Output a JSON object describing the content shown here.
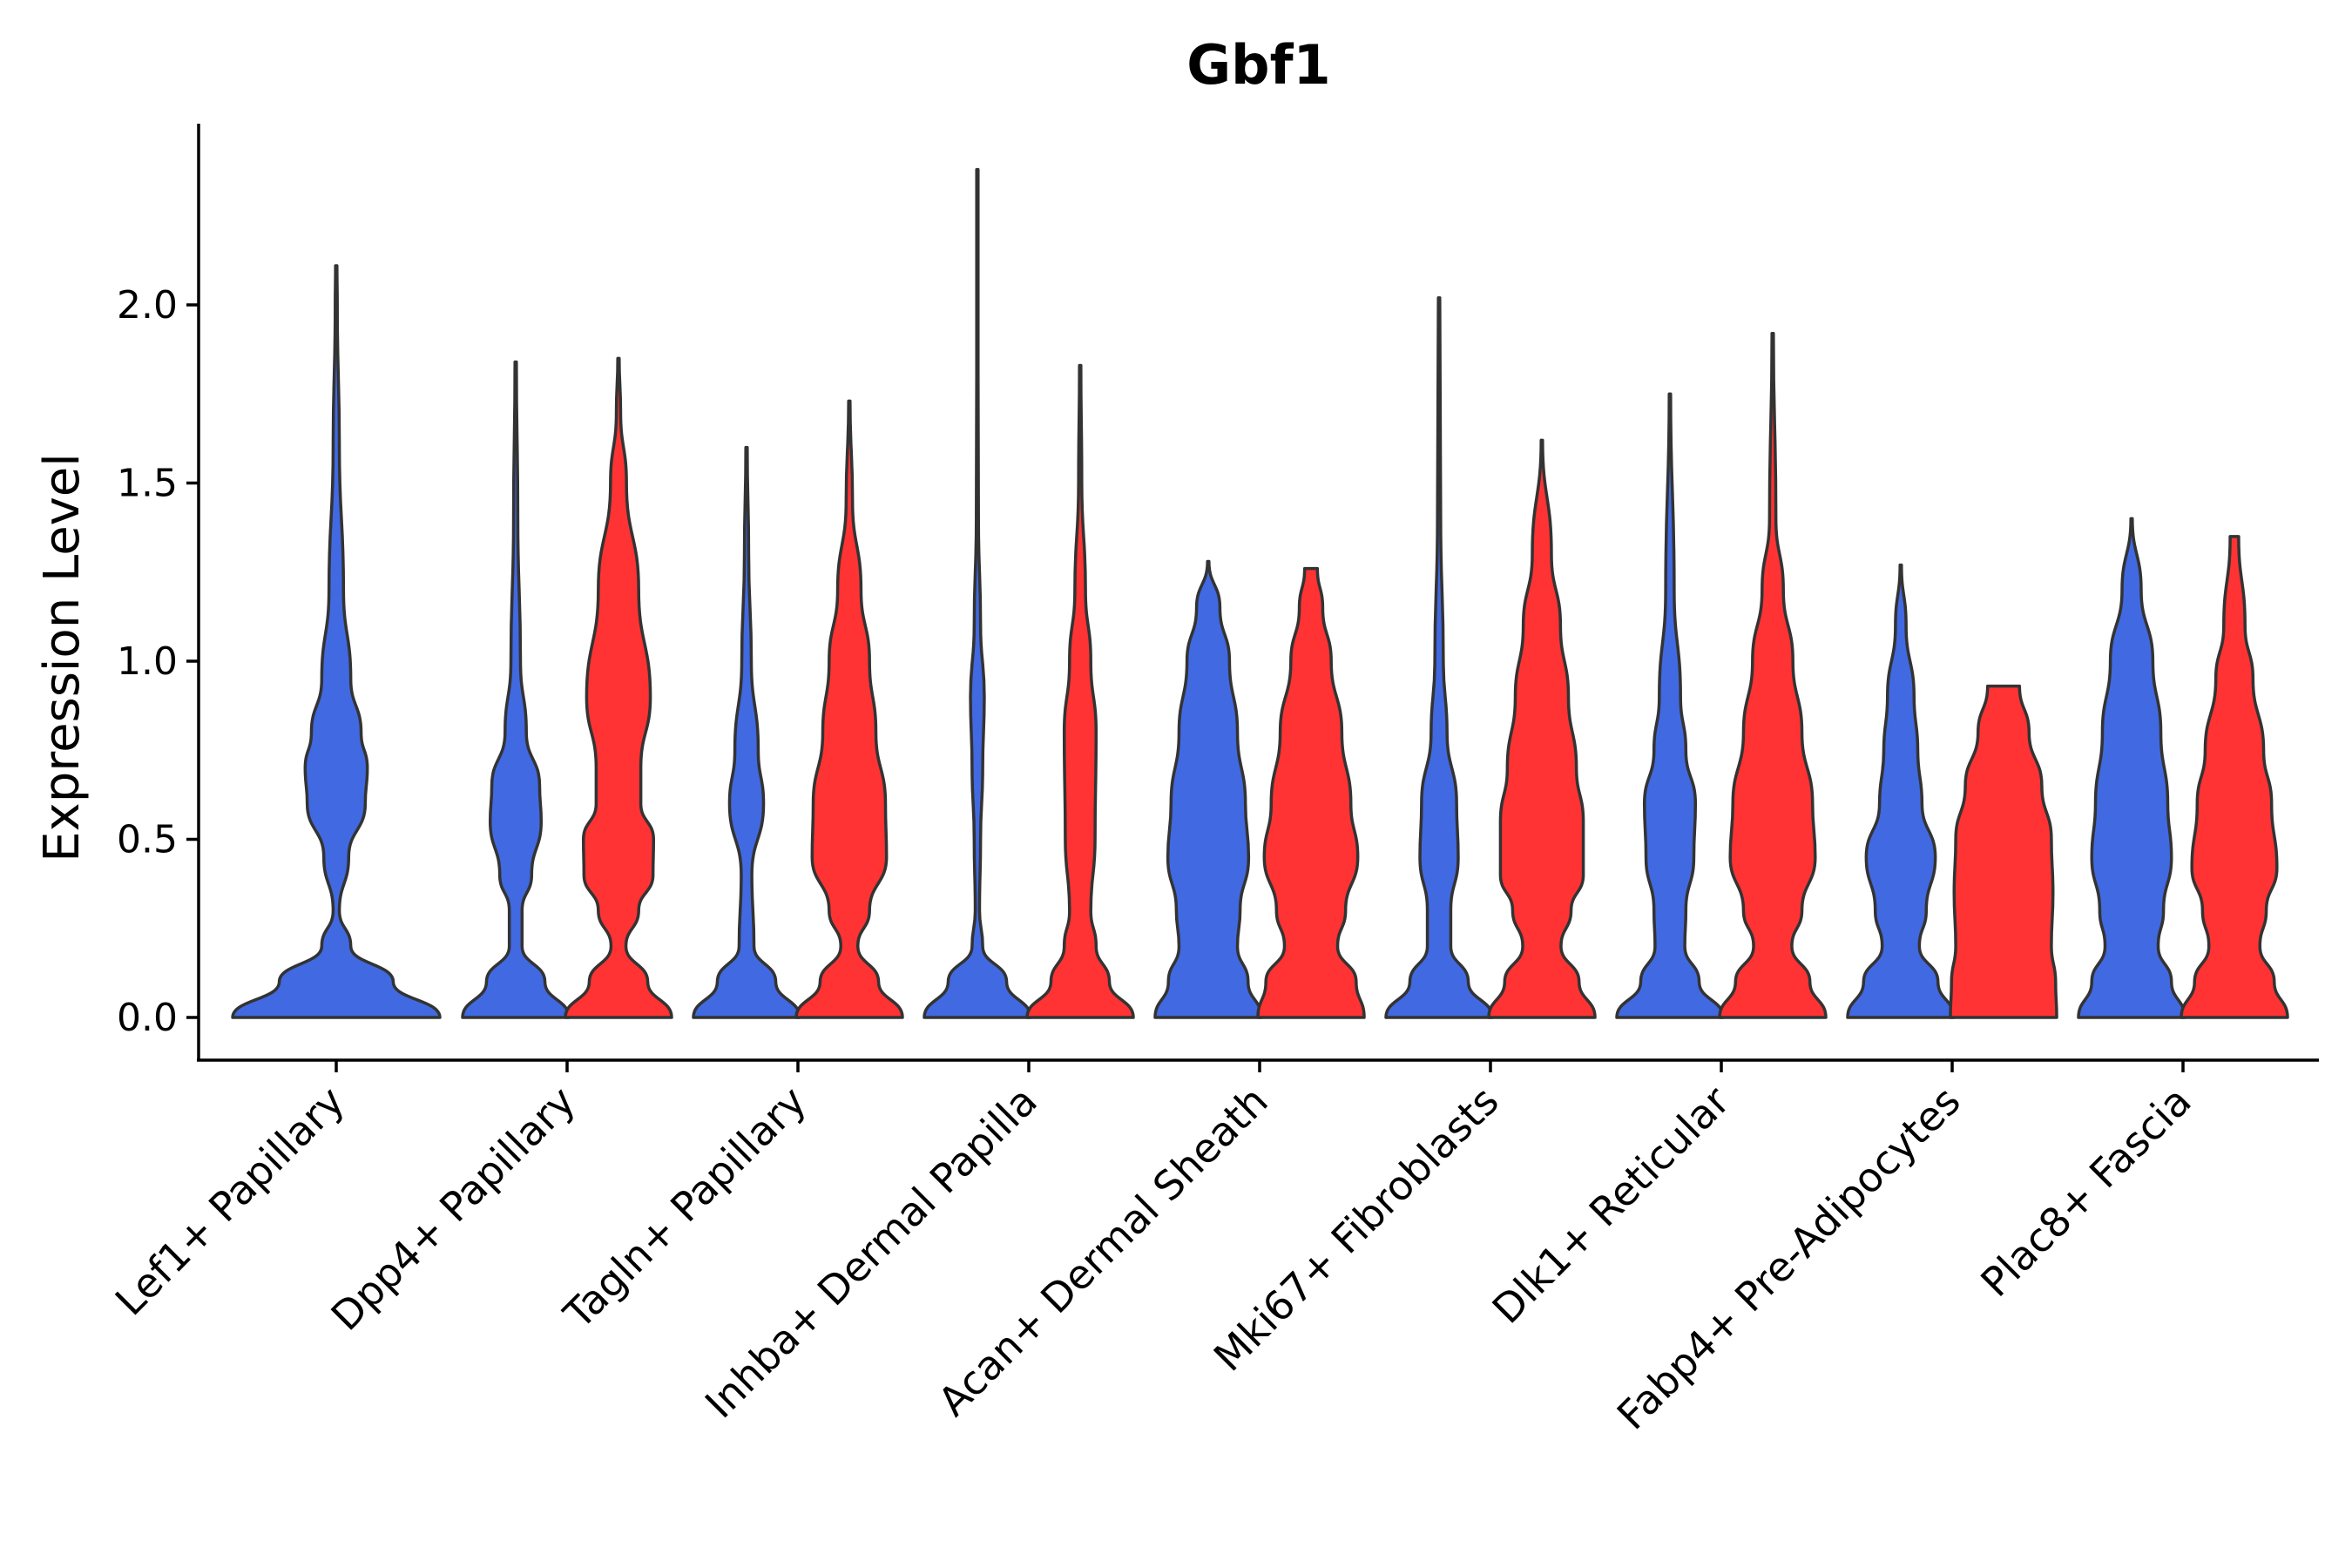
{
  "chart_data": {
    "type": "violin",
    "title": "Gbf1",
    "xlabel": "",
    "ylabel": "Expression Level",
    "ylim": [
      -0.12,
      2.5
    ],
    "yticks": [
      "0.0",
      "0.5",
      "1.0",
      "1.5",
      "2.0"
    ],
    "grid": false,
    "legend": "none",
    "series": [
      {
        "name": "group1",
        "color": "#4169E1"
      },
      {
        "name": "group2",
        "color": "#FF3333"
      }
    ],
    "categories": [
      "Lef1+ Papillary",
      "Dpp4+ Papillary",
      "Tagln+ Papillary",
      "Inhba+ Dermal Papilla",
      "Acan+ Dermal Sheath",
      "Mki67+ Fibroblasts",
      "Dlk1+ Reticular",
      "Fabp4+ Pre-Adipocytes",
      "Plac8+ Fascia"
    ],
    "violins": [
      {
        "category": "Lef1+ Papillary",
        "series": "group1",
        "max": 2.11,
        "profile": [
          [
            0,
            1.0
          ],
          [
            0.1,
            0.55
          ],
          [
            0.2,
            0.14
          ],
          [
            0.3,
            0.03
          ],
          [
            0.45,
            0.12
          ],
          [
            0.6,
            0.28
          ],
          [
            0.7,
            0.3
          ],
          [
            0.8,
            0.24
          ],
          [
            0.95,
            0.14
          ],
          [
            1.2,
            0.07
          ],
          [
            1.6,
            0.03
          ],
          [
            2.0,
            0.01
          ],
          [
            2.11,
            0.0
          ]
        ]
      },
      {
        "category": "Dpp4+ Papillary",
        "series": "group1",
        "max": 1.84,
        "profile": [
          [
            0,
            1.0
          ],
          [
            0.1,
            0.55
          ],
          [
            0.2,
            0.12
          ],
          [
            0.3,
            0.12
          ],
          [
            0.4,
            0.3
          ],
          [
            0.55,
            0.48
          ],
          [
            0.65,
            0.45
          ],
          [
            0.8,
            0.2
          ],
          [
            1.0,
            0.09
          ],
          [
            1.4,
            0.04
          ],
          [
            1.84,
            0.0
          ]
        ]
      },
      {
        "category": "Dpp4+ Papillary",
        "series": "group2",
        "max": 1.85,
        "profile": [
          [
            0,
            1.0
          ],
          [
            0.1,
            0.55
          ],
          [
            0.2,
            0.14
          ],
          [
            0.3,
            0.38
          ],
          [
            0.4,
            0.65
          ],
          [
            0.5,
            0.66
          ],
          [
            0.6,
            0.42
          ],
          [
            0.7,
            0.42
          ],
          [
            0.9,
            0.6
          ],
          [
            1.2,
            0.38
          ],
          [
            1.5,
            0.15
          ],
          [
            1.7,
            0.04
          ],
          [
            1.85,
            0.0
          ]
        ]
      },
      {
        "category": "Tagln+ Papillary",
        "series": "group1",
        "max": 1.6,
        "profile": [
          [
            0,
            1.0
          ],
          [
            0.1,
            0.55
          ],
          [
            0.2,
            0.14
          ],
          [
            0.4,
            0.1
          ],
          [
            0.6,
            0.32
          ],
          [
            0.75,
            0.22
          ],
          [
            1.0,
            0.09
          ],
          [
            1.3,
            0.04
          ],
          [
            1.6,
            0.0
          ]
        ]
      },
      {
        "category": "Tagln+ Papillary",
        "series": "group2",
        "max": 1.73,
        "profile": [
          [
            0,
            1.0
          ],
          [
            0.1,
            0.55
          ],
          [
            0.2,
            0.16
          ],
          [
            0.3,
            0.38
          ],
          [
            0.45,
            0.7
          ],
          [
            0.6,
            0.68
          ],
          [
            0.8,
            0.5
          ],
          [
            1.0,
            0.38
          ],
          [
            1.2,
            0.22
          ],
          [
            1.45,
            0.06
          ],
          [
            1.73,
            0.0
          ]
        ]
      },
      {
        "category": "Inhba+ Dermal Papilla",
        "series": "group1",
        "max": 2.38,
        "profile": [
          [
            0,
            1.0
          ],
          [
            0.1,
            0.55
          ],
          [
            0.2,
            0.1
          ],
          [
            0.3,
            0.04
          ],
          [
            0.5,
            0.06
          ],
          [
            0.7,
            0.1
          ],
          [
            0.9,
            0.13
          ],
          [
            1.1,
            0.06
          ],
          [
            1.4,
            0.02
          ],
          [
            1.8,
            0.01
          ],
          [
            2.38,
            0.0
          ]
        ]
      },
      {
        "category": "Inhba+ Dermal Papilla",
        "series": "group2",
        "max": 1.83,
        "profile": [
          [
            0,
            1.0
          ],
          [
            0.1,
            0.55
          ],
          [
            0.2,
            0.3
          ],
          [
            0.3,
            0.2
          ],
          [
            0.5,
            0.28
          ],
          [
            0.8,
            0.3
          ],
          [
            1.0,
            0.2
          ],
          [
            1.2,
            0.1
          ],
          [
            1.5,
            0.03
          ],
          [
            1.83,
            0.0
          ]
        ]
      },
      {
        "category": "Acan+ Dermal Sheath",
        "series": "group1",
        "max": 1.28,
        "profile": [
          [
            0,
            1.0
          ],
          [
            0.1,
            0.75
          ],
          [
            0.2,
            0.55
          ],
          [
            0.3,
            0.6
          ],
          [
            0.45,
            0.76
          ],
          [
            0.6,
            0.7
          ],
          [
            0.8,
            0.55
          ],
          [
            1.0,
            0.4
          ],
          [
            1.15,
            0.22
          ],
          [
            1.28,
            0.0
          ]
        ]
      },
      {
        "category": "Acan+ Dermal Sheath",
        "series": "group2",
        "max": 1.26,
        "profile": [
          [
            0,
            1.0
          ],
          [
            0.1,
            0.85
          ],
          [
            0.2,
            0.5
          ],
          [
            0.3,
            0.65
          ],
          [
            0.45,
            0.88
          ],
          [
            0.6,
            0.75
          ],
          [
            0.8,
            0.58
          ],
          [
            1.0,
            0.38
          ],
          [
            1.15,
            0.22
          ],
          [
            1.26,
            0.12
          ]
        ]
      },
      {
        "category": "Mki67+ Fibroblasts",
        "series": "group1",
        "max": 2.02,
        "profile": [
          [
            0,
            1.0
          ],
          [
            0.1,
            0.55
          ],
          [
            0.2,
            0.22
          ],
          [
            0.3,
            0.22
          ],
          [
            0.45,
            0.36
          ],
          [
            0.6,
            0.33
          ],
          [
            0.8,
            0.15
          ],
          [
            1.0,
            0.08
          ],
          [
            1.4,
            0.03
          ],
          [
            2.02,
            0.0
          ]
        ]
      },
      {
        "category": "Mki67+ Fibroblasts",
        "series": "group2",
        "max": 1.62,
        "profile": [
          [
            0,
            1.0
          ],
          [
            0.1,
            0.7
          ],
          [
            0.2,
            0.36
          ],
          [
            0.3,
            0.55
          ],
          [
            0.4,
            0.78
          ],
          [
            0.55,
            0.78
          ],
          [
            0.7,
            0.65
          ],
          [
            0.9,
            0.5
          ],
          [
            1.1,
            0.35
          ],
          [
            1.3,
            0.18
          ],
          [
            1.62,
            0.0
          ]
        ]
      },
      {
        "category": "Dlk1+ Reticular",
        "series": "group1",
        "max": 1.75,
        "profile": [
          [
            0,
            1.0
          ],
          [
            0.1,
            0.55
          ],
          [
            0.2,
            0.28
          ],
          [
            0.3,
            0.3
          ],
          [
            0.45,
            0.45
          ],
          [
            0.6,
            0.48
          ],
          [
            0.75,
            0.3
          ],
          [
            0.9,
            0.2
          ],
          [
            1.2,
            0.08
          ],
          [
            1.75,
            0.0
          ]
        ]
      },
      {
        "category": "Dlk1+ Reticular",
        "series": "group2",
        "max": 1.92,
        "profile": [
          [
            0,
            1.0
          ],
          [
            0.1,
            0.7
          ],
          [
            0.2,
            0.36
          ],
          [
            0.3,
            0.55
          ],
          [
            0.45,
            0.8
          ],
          [
            0.6,
            0.75
          ],
          [
            0.8,
            0.55
          ],
          [
            1.0,
            0.38
          ],
          [
            1.2,
            0.2
          ],
          [
            1.4,
            0.06
          ],
          [
            1.92,
            0.0
          ]
        ]
      },
      {
        "category": "Fabp4+ Pre-Adipocytes",
        "series": "group1",
        "max": 1.27,
        "profile": [
          [
            0,
            1.0
          ],
          [
            0.1,
            0.7
          ],
          [
            0.2,
            0.35
          ],
          [
            0.3,
            0.48
          ],
          [
            0.45,
            0.65
          ],
          [
            0.6,
            0.4
          ],
          [
            0.75,
            0.32
          ],
          [
            0.9,
            0.25
          ],
          [
            1.1,
            0.1
          ],
          [
            1.27,
            0.0
          ]
        ]
      },
      {
        "category": "Fabp4+ Pre-Adipocytes",
        "series": "group2",
        "max": 0.93,
        "profile": [
          [
            0,
            1.0
          ],
          [
            0.1,
            0.98
          ],
          [
            0.2,
            0.9
          ],
          [
            0.35,
            0.93
          ],
          [
            0.5,
            0.9
          ],
          [
            0.65,
            0.72
          ],
          [
            0.8,
            0.48
          ],
          [
            0.93,
            0.3
          ]
        ]
      },
      {
        "category": "Plac8+ Fascia",
        "series": "group1",
        "max": 1.4,
        "profile": [
          [
            0,
            1.0
          ],
          [
            0.1,
            0.75
          ],
          [
            0.2,
            0.5
          ],
          [
            0.3,
            0.6
          ],
          [
            0.45,
            0.75
          ],
          [
            0.6,
            0.68
          ],
          [
            0.8,
            0.55
          ],
          [
            1.0,
            0.4
          ],
          [
            1.2,
            0.18
          ],
          [
            1.4,
            0.0
          ]
        ]
      },
      {
        "category": "Plac8+ Fascia",
        "series": "group2",
        "max": 1.35,
        "profile": [
          [
            0,
            1.0
          ],
          [
            0.1,
            0.75
          ],
          [
            0.2,
            0.48
          ],
          [
            0.3,
            0.6
          ],
          [
            0.42,
            0.8
          ],
          [
            0.6,
            0.7
          ],
          [
            0.75,
            0.55
          ],
          [
            0.95,
            0.35
          ],
          [
            1.1,
            0.2
          ],
          [
            1.35,
            0.08
          ]
        ]
      }
    ]
  }
}
